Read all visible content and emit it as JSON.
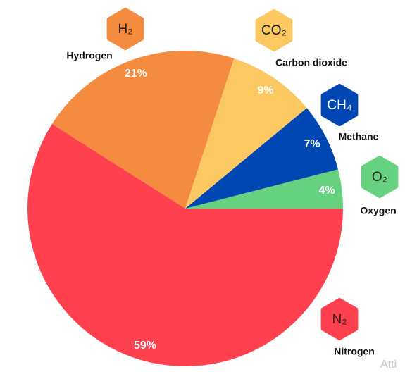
{
  "chart_data": {
    "type": "pie",
    "categories": [
      "Oxygen",
      "Methane",
      "Carbon dioxide",
      "Hydrogen",
      "Nitrogen"
    ],
    "formulas": [
      "O₂",
      "CH₄",
      "CO₂",
      "H₂",
      "N₂"
    ],
    "values": [
      4,
      7,
      9,
      21,
      59
    ],
    "value_labels": [
      "4%",
      "7%",
      "9%",
      "21%",
      "59%"
    ],
    "colors": [
      "#66d17f",
      "#0047b3",
      "#fbc862",
      "#f48b3f",
      "#ff404e"
    ],
    "watermark": "Atti"
  }
}
